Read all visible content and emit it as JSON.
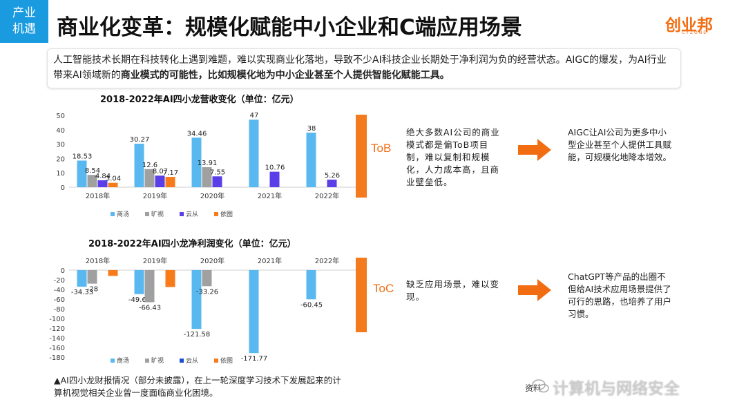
{
  "header": {
    "tag": [
      "产业",
      "机遇"
    ],
    "title": "商业化变革：规模化赋能中小企业和C端应用场景",
    "brand": "创业邦",
    "brand_sub": "CYZONE"
  },
  "intro": {
    "text_plain": "人工智能技术长期在科技转化上遇到难题，难以实现商业化落地，导致不少AI科技企业长期处于净利润为负的经营状态。AIGC的爆发，为AI行业带来AI领域新的",
    "text_bold": "商业模式的可能性，比如规模化地为中小企业甚至个人提供智能化赋能工具。"
  },
  "colors": {
    "accent": "#f37b1d",
    "brand": "#1a9be0",
    "arrow": "#f26d12"
  },
  "chart_data": [
    {
      "type": "bar",
      "title": "2018-2022年AI四小龙营收变化（单位：亿元）",
      "categories": [
        "2018年",
        "2019年",
        "2020年",
        "2021年",
        "2022年"
      ],
      "series": [
        {
          "name": "商汤",
          "color": "#5ab8f0",
          "values": [
            18.53,
            30.27,
            34.46,
            47,
            38
          ]
        },
        {
          "name": "旷视",
          "color": "#a0a0a0",
          "values": [
            8.54,
            12.6,
            13.91,
            null,
            null
          ]
        },
        {
          "name": "云从",
          "color": "#5a3ee8",
          "values": [
            4.84,
            8.07,
            7.55,
            10.76,
            5.26
          ]
        },
        {
          "name": "依图",
          "color": "#f77b1b",
          "values": [
            3.04,
            7.17,
            null,
            null,
            null
          ]
        }
      ],
      "yticks": [
        0,
        10,
        20,
        30,
        40,
        50
      ],
      "ylim": [
        0,
        50
      ]
    },
    {
      "type": "bar",
      "title": "2018-2022年AI四小龙净利润变化（单位：亿元）",
      "categories": [
        "2018年",
        "2019年",
        "2020年",
        "2021年",
        "2022年"
      ],
      "series": [
        {
          "name": "商汤",
          "color": "#5ab8f0",
          "values": [
            -34.33,
            -49.68,
            -121.58,
            -171.77,
            -60.45
          ]
        },
        {
          "name": "旷视",
          "color": "#a0a0a0",
          "values": [
            -28,
            -66.43,
            -33.26,
            null,
            null
          ]
        },
        {
          "name": "云从",
          "color": "#1a4fd0",
          "values": [
            null,
            null,
            null,
            null,
            null
          ]
        },
        {
          "name": "依图",
          "color": "#f77b1b",
          "values": [
            -12,
            -35,
            null,
            null,
            null
          ]
        }
      ],
      "labels": [
        [
          "-34.33",
          "-49.68",
          "-121.58",
          "-171.77",
          "-60.45"
        ],
        [
          "-28",
          "-66.43",
          "-33.26",
          "",
          ""
        ]
      ],
      "yticks": [
        0,
        -20,
        -40,
        -60,
        -80,
        -100,
        -120,
        -140,
        -160,
        -180
      ],
      "ylim": [
        -180,
        0
      ]
    }
  ],
  "tob": {
    "label": "ToB",
    "desc": "绝大多数AI公司的商业模式都是偏ToB项目制，难以复制和规模化，人力成本高，且商业壁垒低。",
    "result": "AIGC让AI公司为更多中小型企业甚至个人提供工具赋能，可规模化地降本增效。"
  },
  "toc": {
    "label": "ToC",
    "desc": "缺乏应用场景，难以变现。",
    "result": "ChatGPT等产品的出圈不但给AI技术应用场景提供了可行的思路，也培养了用户习惯。"
  },
  "footnote": "▲AI四小龙财报情况（部分未披露），在上一轮深度学习技术下发展起来的计算机视觉相关企业曾一度面临商业化困境。",
  "source": "资料",
  "watermark": "计算机与网络安全"
}
